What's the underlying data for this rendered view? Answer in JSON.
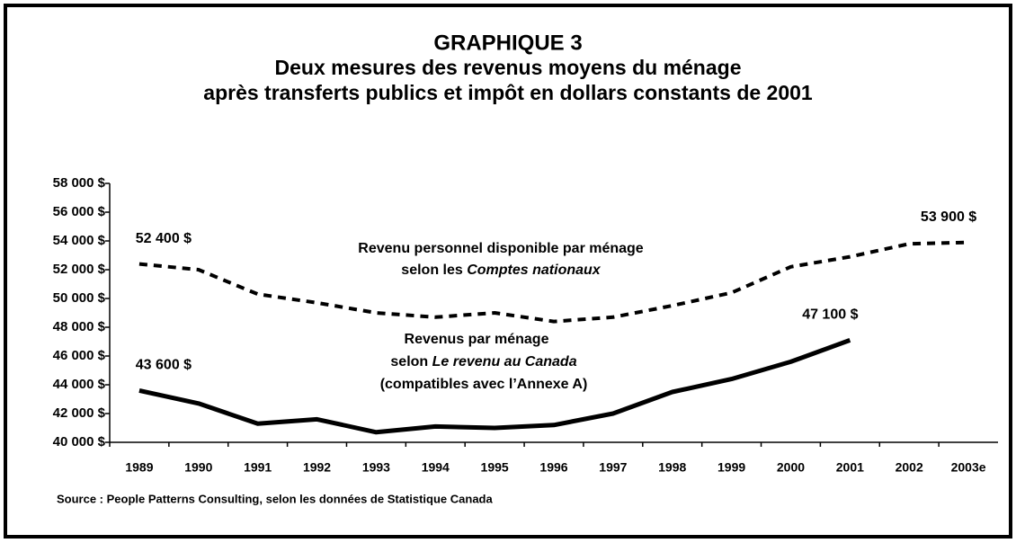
{
  "chart_data": {
    "type": "line",
    "title": [
      "GRAPHIQUE 3",
      "Deux mesures des revenus moyens du ménage",
      "après transferts publics et impôt en dollars constants de 2001"
    ],
    "source": "Source : People Patterns Consulting, selon les données de Statistique Canada",
    "categories": [
      "1989",
      "1990",
      "1991",
      "1992",
      "1993",
      "1994",
      "1995",
      "1996",
      "1997",
      "1998",
      "1999",
      "2000",
      "2001",
      "2002",
      "2003e"
    ],
    "ylim": [
      40000,
      58000
    ],
    "yticks": [
      {
        "value": 40000,
        "label": "40 000 $"
      },
      {
        "value": 42000,
        "label": "42 000 $"
      },
      {
        "value": 44000,
        "label": "44 000 $"
      },
      {
        "value": 46000,
        "label": "46 000 $"
      },
      {
        "value": 48000,
        "label": "48 000 $"
      },
      {
        "value": 50000,
        "label": "50 000 $"
      },
      {
        "value": 52000,
        "label": "52 000 $"
      },
      {
        "value": 54000,
        "label": "54 000 $"
      },
      {
        "value": 56000,
        "label": "56 000 $"
      },
      {
        "value": 58000,
        "label": "58 000 $"
      }
    ],
    "series": [
      {
        "label": [
          [
            {
              "text": "Revenu personnel disponible par ménage"
            }
          ],
          [
            {
              "text": "selon les "
            },
            {
              "text": "Comptes nationaux",
              "italic": true
            }
          ]
        ],
        "color": "#000000",
        "dashed": true,
        "values": [
          52400,
          52000,
          50300,
          49700,
          49000,
          48700,
          49000,
          48400,
          48700,
          49500,
          50400,
          52200,
          52900,
          53800,
          53900
        ],
        "value_labels": [
          "52 400 $",
          null,
          null,
          null,
          null,
          null,
          null,
          null,
          null,
          null,
          null,
          null,
          null,
          null,
          "53 900 $"
        ]
      },
      {
        "label": [
          [
            {
              "text": "Revenus par ménage"
            }
          ],
          [
            {
              "text": "selon "
            },
            {
              "text": "Le revenu au Canada",
              "italic": true
            }
          ],
          [
            {
              "text": "(compatibles avec l’Annexe A)"
            }
          ]
        ],
        "color": "#000000",
        "dashed": false,
        "values": [
          43600,
          42700,
          41300,
          41600,
          40700,
          41100,
          41000,
          41200,
          42000,
          43500,
          44400,
          45600,
          47100,
          null,
          null
        ],
        "value_labels": [
          "43 600 $",
          null,
          null,
          null,
          null,
          null,
          null,
          null,
          null,
          null,
          null,
          null,
          "47 100 $",
          null,
          null
        ]
      }
    ]
  }
}
